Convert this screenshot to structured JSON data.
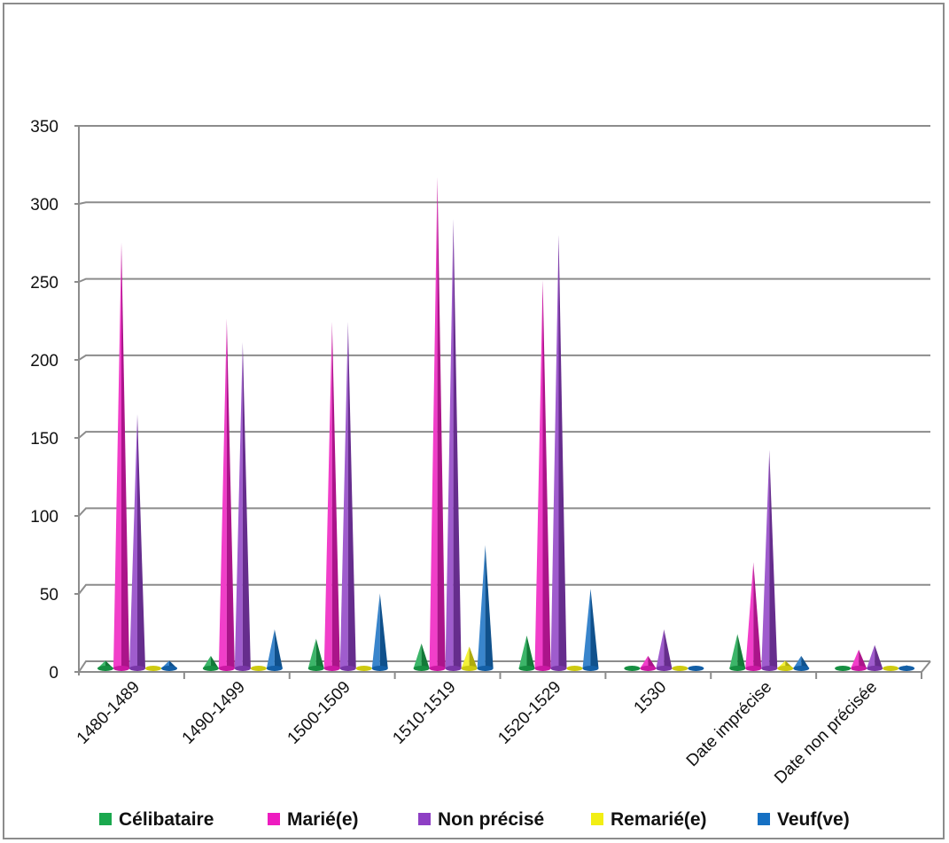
{
  "chart_data": {
    "type": "bar",
    "style": "3d-cone",
    "categories": [
      "1480-1489",
      "1490-1499",
      "1500-1509",
      "1510-1519",
      "1520-1529",
      "1530",
      "Date imprécise",
      "Date non précisée"
    ],
    "series": [
      {
        "name": "Célibataire",
        "color": "#1aa84e",
        "values": [
          5,
          8,
          19,
          16,
          21,
          1,
          22,
          1
        ]
      },
      {
        "name": "Marié(e)",
        "color": "#ee1cc0",
        "values": [
          273,
          224,
          222,
          315,
          249,
          8,
          68,
          12
        ]
      },
      {
        "name": "Non précisé",
        "color": "#8e3fc4",
        "values": [
          163,
          209,
          222,
          288,
          278,
          25,
          140,
          15
        ]
      },
      {
        "name": "Remarié(e)",
        "color": "#f2ee14",
        "values": [
          1,
          1,
          1,
          14,
          1,
          0,
          5,
          0
        ]
      },
      {
        "name": "Veuf(ve)",
        "color": "#1670c3",
        "values": [
          5,
          25,
          48,
          79,
          51,
          0,
          8,
          2
        ]
      }
    ],
    "yticks": [
      0,
      50,
      100,
      150,
      200,
      250,
      300,
      350
    ],
    "ylim": [
      0,
      350
    ],
    "grid": true,
    "legend_position": "bottom"
  }
}
